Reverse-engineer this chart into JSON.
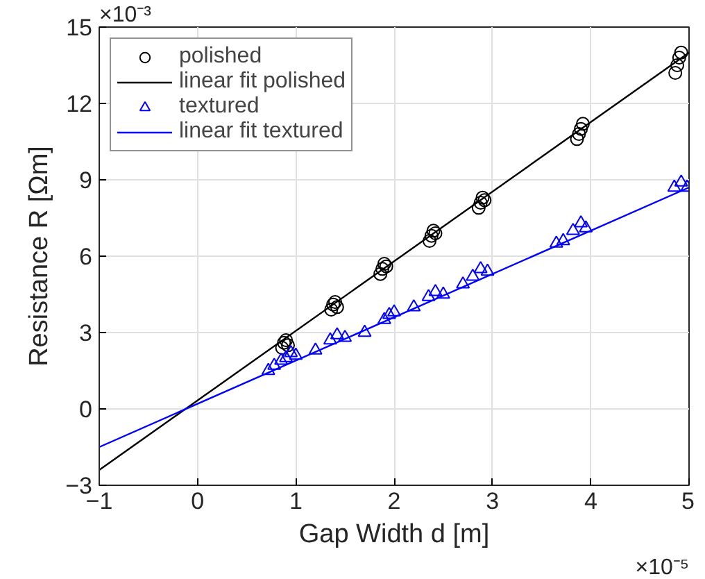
{
  "chart_data": {
    "type": "scatter",
    "xlabel": "Gap Width d [m]",
    "ylabel": "Resistance R [Ωm]",
    "xlim": [
      -1,
      5
    ],
    "ylim": [
      -3,
      15
    ],
    "xticks": [
      -1,
      0,
      1,
      2,
      3,
      4,
      5
    ],
    "yticks": [
      -3,
      0,
      3,
      6,
      9,
      12,
      15
    ],
    "grid": true,
    "legend": "top left",
    "annotations": [
      "×10⁻³",
      "×10⁻⁵"
    ],
    "series": [
      {
        "name": "polished",
        "marker": "circle",
        "color": "#000000",
        "x": [
          0.86,
          0.88,
          0.9,
          0.92,
          1.36,
          1.38,
          1.4,
          1.42,
          1.86,
          1.88,
          1.9,
          1.92,
          2.36,
          2.38,
          2.4,
          2.42,
          2.86,
          2.88,
          2.9,
          2.92,
          3.86,
          3.88,
          3.9,
          3.92,
          4.86,
          4.88,
          4.9,
          4.92
        ],
        "values": [
          2.4,
          2.6,
          2.7,
          2.5,
          3.9,
          4.1,
          4.2,
          4.0,
          5.3,
          5.5,
          5.7,
          5.6,
          6.6,
          6.8,
          7.0,
          6.9,
          7.9,
          8.1,
          8.3,
          8.2,
          10.6,
          10.8,
          11.0,
          11.2,
          13.2,
          13.5,
          13.8,
          14.0
        ]
      },
      {
        "name": "linear fit polished",
        "type": "line",
        "color": "#000000",
        "x": [
          -1,
          5
        ],
        "values": [
          -2.4,
          14.0
        ]
      },
      {
        "name": "textured",
        "marker": "triangle",
        "color": "#0000ff",
        "x": [
          0.72,
          0.78,
          0.85,
          0.9,
          0.95,
          1.0,
          1.2,
          1.35,
          1.42,
          1.5,
          1.7,
          1.9,
          1.95,
          2.0,
          2.2,
          2.35,
          2.42,
          2.5,
          2.7,
          2.8,
          2.88,
          2.95,
          3.65,
          3.72,
          3.82,
          3.9,
          3.95,
          4.85,
          4.92,
          4.98
        ],
        "values": [
          1.5,
          1.7,
          1.9,
          2.0,
          2.2,
          2.1,
          2.3,
          2.7,
          2.9,
          2.8,
          3.0,
          3.5,
          3.7,
          3.8,
          4.0,
          4.4,
          4.6,
          4.5,
          4.9,
          5.2,
          5.5,
          5.4,
          6.5,
          6.6,
          7.0,
          7.3,
          7.1,
          8.7,
          8.9,
          8.7
        ]
      },
      {
        "name": "linear fit textured",
        "type": "line",
        "color": "#0000ff",
        "x": [
          -1,
          5
        ],
        "values": [
          -1.5,
          8.7
        ]
      }
    ]
  }
}
